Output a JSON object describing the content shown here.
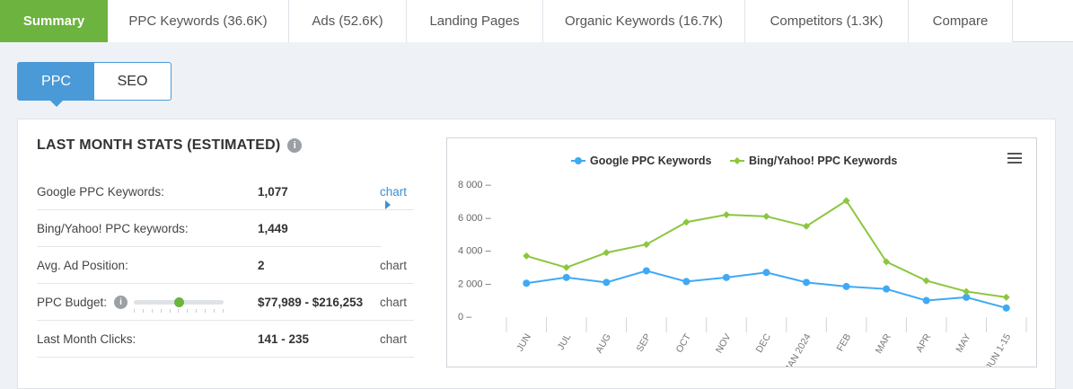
{
  "tabs": [
    {
      "label": "Summary",
      "active": true
    },
    {
      "label": "PPC Keywords (36.6K)",
      "active": false
    },
    {
      "label": "Ads (52.6K)",
      "active": false
    },
    {
      "label": "Landing Pages",
      "active": false
    },
    {
      "label": "Organic Keywords (16.7K)",
      "active": false
    },
    {
      "label": "Competitors (1.3K)",
      "active": false
    },
    {
      "label": "Compare",
      "active": false
    }
  ],
  "toggle": {
    "ppc": "PPC",
    "seo": "SEO",
    "selected": "PPC"
  },
  "stats": {
    "title": "LAST MONTH STATS (ESTIMATED)",
    "info_icon": "i",
    "rows": [
      {
        "label": "Google PPC Keywords:",
        "value": "1,077",
        "link": "chart"
      },
      {
        "label": "Bing/Yahoo! PPC keywords:",
        "value": "1,449",
        "link": ""
      },
      {
        "label": "Avg. Ad Position:",
        "value": "2",
        "link": "chart"
      },
      {
        "label": "PPC Budget:",
        "value": "$77,989 - $216,253",
        "link": "chart"
      },
      {
        "label": "Last Month Clicks:",
        "value": "141 - 235",
        "link": "chart"
      }
    ],
    "budget_slider_level": 0.5
  },
  "colors": {
    "accent_green": "#6cb33f",
    "accent_blue": "#4a9ad8",
    "google_series": "#3fa9f5",
    "bing_series": "#8cc63f"
  },
  "chart_data": {
    "type": "line",
    "categories": [
      "JUN",
      "JUL",
      "AUG",
      "SEP",
      "OCT",
      "NOV",
      "DEC",
      "JAN 2024",
      "FEB",
      "MAR",
      "APR",
      "MAY",
      "JUN 1-15"
    ],
    "series": [
      {
        "name": "Google PPC Keywords",
        "values": [
          2000,
          2350,
          2050,
          2750,
          2100,
          2350,
          2650,
          2050,
          1800,
          1650,
          950,
          1150,
          500
        ]
      },
      {
        "name": "Bing/Yahoo! PPC Keywords",
        "values": [
          3650,
          2950,
          3850,
          4350,
          5700,
          6150,
          6050,
          5450,
          7000,
          3300,
          2150,
          1500,
          1150
        ]
      }
    ],
    "y_ticks": [
      "8 000",
      "6 000",
      "4 000",
      "2 000",
      "0"
    ],
    "ylim": [
      0,
      8000
    ],
    "legend_position": "top-center",
    "grid": false
  }
}
